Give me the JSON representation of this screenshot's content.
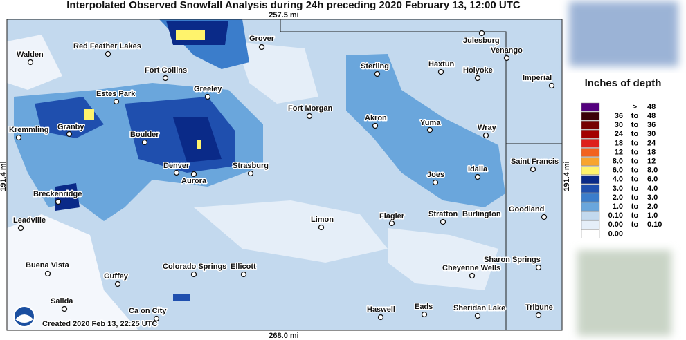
{
  "header": {
    "title": "Interpolated Observed Snowfall Analysis during 24h preceding 2020 February 13, 12:00 UTC",
    "top_distance": "257.5 mi",
    "bottom_distance": "268.0 mi",
    "left_distance": "191.4 mi",
    "right_distance": "191.4 mi"
  },
  "cities": [
    "Walden",
    "Red Feather Lakes",
    "Grover",
    "Julesburg",
    "Venango",
    "Fort Collins",
    "Sterling",
    "Haxtun",
    "Holyoke",
    "Imperial",
    "Estes Park",
    "Greeley",
    "Fort Morgan",
    "Akron",
    "Yuma",
    "Wray",
    "Kremmling",
    "Granby",
    "Boulder",
    "Denver",
    "Aurora",
    "Strasburg",
    "Saint Francis",
    "Idalia",
    "Joes",
    "Breckenridge",
    "Goodland",
    "Leadville",
    "Limon",
    "Flagler",
    "Stratton",
    "Burlington",
    "Sharon Springs",
    "Buena Vista",
    "Colorado Springs",
    "Ellicott",
    "Cheyenne Wells",
    "Guffey",
    "Salida",
    "Ca on City",
    "Haswell",
    "Eads",
    "Sheridan Lake",
    "Tribune"
  ],
  "footer": {
    "created": "Created 2020 Feb 13, 22:25 UTC"
  },
  "legend": {
    "title": "Inches of depth",
    "rows": [
      {
        "color": "#54007e",
        "sep": ">",
        "high": "48"
      },
      {
        "color": "#3a0008",
        "low": "36",
        "sep": "to",
        "high": "48"
      },
      {
        "color": "#760000",
        "low": "30",
        "sep": "to",
        "high": "36"
      },
      {
        "color": "#a30000",
        "low": "24",
        "sep": "to",
        "high": "30"
      },
      {
        "color": "#de1f1c",
        "low": "18",
        "sep": "to",
        "high": "24"
      },
      {
        "color": "#f2621f",
        "low": "12",
        "sep": "to",
        "high": "18"
      },
      {
        "color": "#f8a42e",
        "low": "8.0",
        "sep": "to",
        "high": "12"
      },
      {
        "color": "#fff36c",
        "low": "6.0",
        "sep": "to",
        "high": "8.0"
      },
      {
        "color": "#0a2a88",
        "low": "4.0",
        "sep": "to",
        "high": "6.0"
      },
      {
        "color": "#1f4fae",
        "low": "3.0",
        "sep": "to",
        "high": "4.0"
      },
      {
        "color": "#3b7dcb",
        "low": "2.0",
        "sep": "to",
        "high": "3.0"
      },
      {
        "color": "#6aa6dc",
        "low": "1.0",
        "sep": "to",
        "high": "2.0"
      },
      {
        "color": "#c3d9ee",
        "low": "0.10",
        "sep": "to",
        "high": "1.0"
      },
      {
        "color": "#e5eef8",
        "low": "0.00",
        "sep": "to",
        "high": "0.10"
      },
      {
        "color": "#ffffff",
        "low": "0.00"
      }
    ]
  }
}
